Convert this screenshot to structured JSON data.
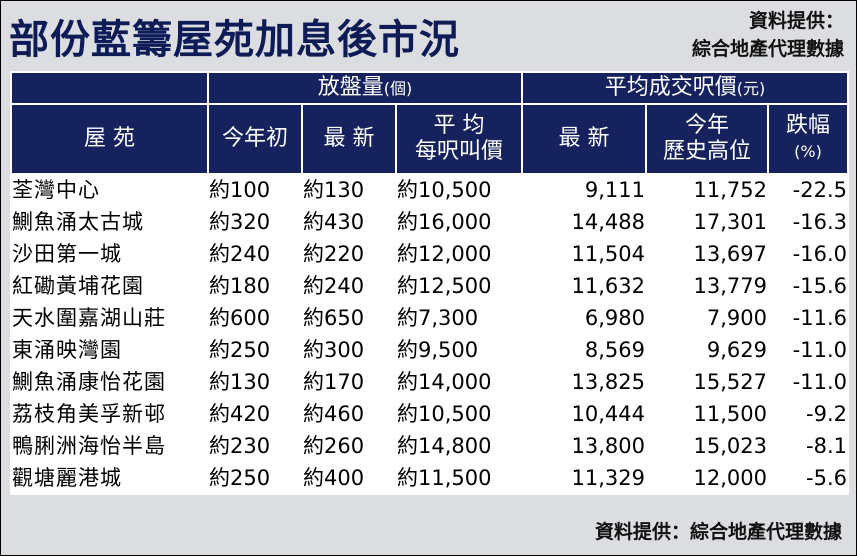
{
  "title": "部份藍籌屋苑加息後市況",
  "source_top": {
    "line1": "資料提供：",
    "line2": "綜合地產代理數據"
  },
  "headers": {
    "estate": "屋 苑",
    "group_listings": "放盤量",
    "group_listings_unit": "(個)",
    "group_price": "平均成交呎價",
    "group_price_unit": "(元)",
    "start_of_year": "今年初",
    "latest_listings": "最 新",
    "avg_line1": "平 均",
    "avg_line2": "每呎叫價",
    "latest_price": "最 新",
    "high_line1": "今年",
    "high_line2": "歷史高位",
    "drop_line1": "跌幅",
    "drop_line2": "(%)"
  },
  "rows": [
    {
      "estate": "荃灣中心",
      "start": "約100",
      "latest": "約130",
      "asking": "約10,500",
      "latest_price": "9,111",
      "high": "11,752",
      "drop": "-22.5"
    },
    {
      "estate": "鰂魚涌太古城",
      "start": "約320",
      "latest": "約430",
      "asking": "約16,000",
      "latest_price": "14,488",
      "high": "17,301",
      "drop": "-16.3"
    },
    {
      "estate": "沙田第一城",
      "start": "約240",
      "latest": "約220",
      "asking": "約12,000",
      "latest_price": "11,504",
      "high": "13,697",
      "drop": "-16.0"
    },
    {
      "estate": "紅磡黃埔花園",
      "start": "約180",
      "latest": "約240",
      "asking": "約12,500",
      "latest_price": "11,632",
      "high": "13,779",
      "drop": "-15.6"
    },
    {
      "estate": "天水圍嘉湖山莊",
      "start": "約600",
      "latest": "約650",
      "asking": "約7,300",
      "latest_price": "6,980",
      "high": "7,900",
      "drop": "-11.6"
    },
    {
      "estate": "東涌映灣園",
      "start": "約250",
      "latest": "約300",
      "asking": "約9,500",
      "latest_price": "8,569",
      "high": "9,629",
      "drop": "-11.0"
    },
    {
      "estate": "鰂魚涌康怡花園",
      "start": "約130",
      "latest": "約170",
      "asking": "約14,000",
      "latest_price": "13,825",
      "high": "15,527",
      "drop": "-11.0"
    },
    {
      "estate": "荔枝角美孚新邨",
      "start": "約420",
      "latest": "約460",
      "asking": "約10,500",
      "latest_price": "10,444",
      "high": "11,500",
      "drop": "-9.2"
    },
    {
      "estate": "鴨脷洲海怡半島",
      "start": "約230",
      "latest": "約260",
      "asking": "約14,800",
      "latest_price": "13,800",
      "high": "15,023",
      "drop": "-8.1"
    },
    {
      "estate": "觀塘麗港城",
      "start": "約250",
      "latest": "約400",
      "asking": "約11,500",
      "latest_price": "11,329",
      "high": "12,000",
      "drop": "-5.6"
    }
  ],
  "source_bottom": "資料提供：綜合地產代理數據"
}
